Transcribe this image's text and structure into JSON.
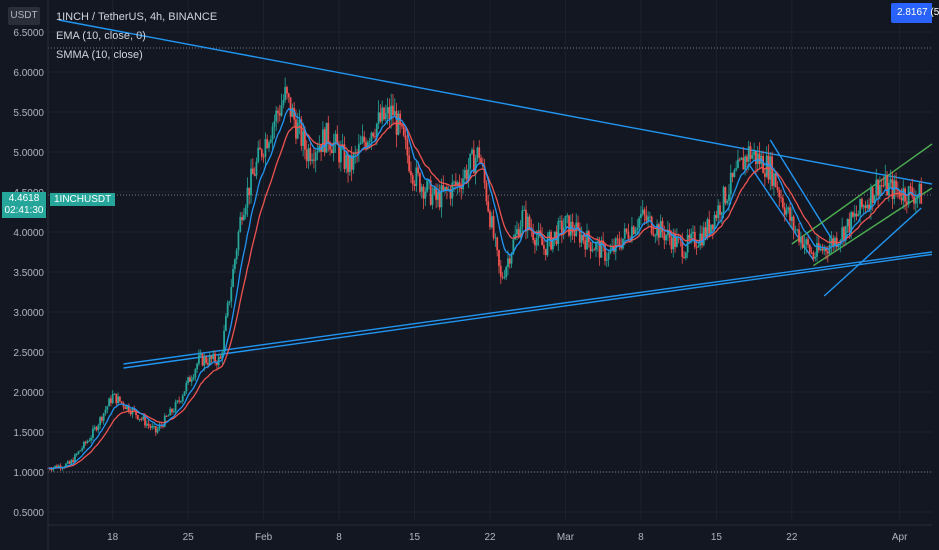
{
  "header": {
    "unit": "USDT",
    "title": "1INCH / TetherUS, 4h, BINANCE",
    "indicator_ema": "EMA (10, close, 0)",
    "indicator_smma": "SMMA (10, close)"
  },
  "current_price": {
    "value": "4.4618",
    "countdown": "02:41:30",
    "symbol_tag": "1INCHUSDT"
  },
  "badge": {
    "text": "2.8167 (5"
  },
  "colors": {
    "background": "#131722",
    "grid": "#1e222d",
    "candle_up": "#26a69a",
    "candle_down": "#ef5350",
    "ema": "#2196f3",
    "smma": "#ef5350",
    "trendline": "#2196f3",
    "channel": "#4caf50",
    "axis_text": "#b2b5be"
  },
  "chart_data": {
    "type": "candlestick",
    "title": "1INCH / TetherUS, 4h, BINANCE",
    "y_axis": {
      "position": "left",
      "ticks": [
        "6.5000",
        "6.0000",
        "5.5000",
        "5.0000",
        "4.5000",
        "4.0000",
        "3.5000",
        "3.0000",
        "2.5000",
        "2.0000",
        "1.5000",
        "1.0000",
        "0.5000"
      ],
      "range": [
        0.4,
        6.9
      ]
    },
    "x_axis": {
      "ticks": [
        "18",
        "25",
        "Feb",
        "8",
        "15",
        "22",
        "Mar",
        "8",
        "15",
        "22",
        "Apr"
      ],
      "dates": [
        "2021-01-18",
        "2021-01-25",
        "2021-02-01",
        "2021-02-08",
        "2021-02-15",
        "2021-02-22",
        "2021-03-01",
        "2021-03-08",
        "2021-03-15",
        "2021-03-22",
        "2021-04-01"
      ],
      "range": [
        "2021-01-12",
        "2021-04-04"
      ]
    },
    "reference_lines": [
      6.3,
      4.4618,
      1.0
    ],
    "path_points": [
      [
        "2021-01-12",
        1.05
      ],
      [
        "2021-01-14",
        1.1
      ],
      [
        "2021-01-16",
        1.45
      ],
      [
        "2021-01-18",
        1.95
      ],
      [
        "2021-01-20",
        1.75
      ],
      [
        "2021-01-22",
        1.5
      ],
      [
        "2021-01-24",
        1.85
      ],
      [
        "2021-01-26",
        2.4
      ],
      [
        "2021-01-28",
        2.4
      ],
      [
        "2021-01-30",
        4.3
      ],
      [
        "2021-02-01",
        5.1
      ],
      [
        "2021-02-03",
        5.7
      ],
      [
        "2021-02-05",
        5.0
      ],
      [
        "2021-02-07",
        5.2
      ],
      [
        "2021-02-09",
        4.8
      ],
      [
        "2021-02-11",
        5.3
      ],
      [
        "2021-02-13",
        5.5
      ],
      [
        "2021-02-15",
        4.7
      ],
      [
        "2021-02-17",
        4.4
      ],
      [
        "2021-02-19",
        4.6
      ],
      [
        "2021-02-21",
        5.0
      ],
      [
        "2021-02-23",
        3.4
      ],
      [
        "2021-02-25",
        4.2
      ],
      [
        "2021-02-27",
        3.8
      ],
      [
        "2021-03-01",
        4.1
      ],
      [
        "2021-03-03",
        3.9
      ],
      [
        "2021-03-05",
        3.7
      ],
      [
        "2021-03-08",
        4.2
      ],
      [
        "2021-03-10",
        4.0
      ],
      [
        "2021-03-12",
        3.8
      ],
      [
        "2021-03-14",
        4.0
      ],
      [
        "2021-03-16",
        4.5
      ],
      [
        "2021-03-18",
        5.0
      ],
      [
        "2021-03-20",
        4.8
      ],
      [
        "2021-03-22",
        4.1
      ],
      [
        "2021-03-24",
        3.7
      ],
      [
        "2021-03-26",
        3.9
      ],
      [
        "2021-03-28",
        4.2
      ],
      [
        "2021-03-30",
        4.6
      ],
      [
        "2021-04-01",
        4.5
      ],
      [
        "2021-04-03",
        4.46
      ]
    ],
    "trend_lines": [
      {
        "kind": "resistance",
        "from": [
          "2021-01-13",
          6.65
        ],
        "to": [
          "2021-04-04",
          4.6
        ]
      },
      {
        "kind": "support",
        "from": [
          "2021-01-19",
          2.3
        ],
        "to": [
          "2021-04-04",
          3.72
        ]
      },
      {
        "kind": "support",
        "from": [
          "2021-01-19",
          2.35
        ],
        "to": [
          "2021-04-04",
          3.75
        ]
      },
      {
        "kind": "falling-wedge",
        "from": [
          "2021-03-20",
          5.15
        ],
        "to": [
          "2021-03-26",
          3.85
        ]
      },
      {
        "kind": "falling-wedge",
        "from": [
          "2021-03-18",
          4.85
        ],
        "to": [
          "2021-03-24",
          3.65
        ]
      },
      {
        "kind": "channel-upper",
        "from": [
          "2021-03-22",
          3.85
        ],
        "to": [
          "2021-04-04",
          5.1
        ]
      },
      {
        "kind": "channel-lower",
        "from": [
          "2021-03-24",
          3.58
        ],
        "to": [
          "2021-04-04",
          4.55
        ]
      },
      {
        "kind": "support",
        "from": [
          "2021-03-25",
          3.2
        ],
        "to": [
          "2021-04-03",
          4.3
        ]
      }
    ]
  }
}
